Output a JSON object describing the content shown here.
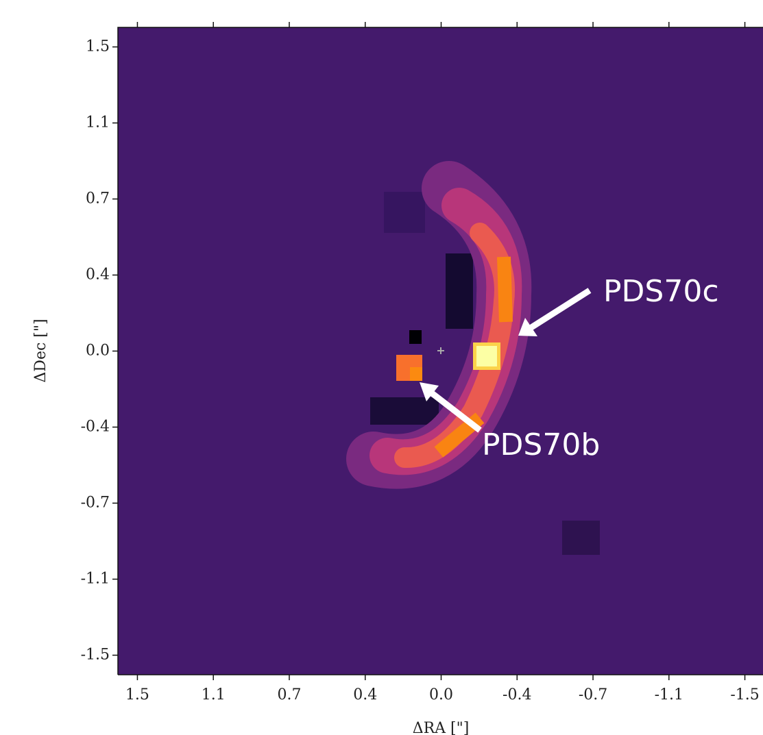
{
  "chart_data": {
    "type": "image",
    "x_label": "ΔRA [\"]",
    "y_label": "ΔDec [\"]",
    "xlim": [
      1.575,
      -1.575
    ],
    "ylim": [
      -1.575,
      1.575
    ],
    "xticks": [
      {
        "value": 1.48,
        "label": "1.5"
      },
      {
        "value": 1.11,
        "label": "1.1"
      },
      {
        "value": 0.74,
        "label": "0.7"
      },
      {
        "value": 0.37,
        "label": "0.4"
      },
      {
        "value": 0,
        "label": "0.0"
      },
      {
        "value": -0.37,
        "label": "-0.4"
      },
      {
        "value": -0.74,
        "label": "-0.7"
      },
      {
        "value": -1.11,
        "label": "-1.1"
      },
      {
        "value": -1.48,
        "label": "-1.5"
      }
    ],
    "yticks": [
      {
        "value": 1.48,
        "label": "1.5"
      },
      {
        "value": 1.11,
        "label": "1.1"
      },
      {
        "value": 0.74,
        "label": "0.7"
      },
      {
        "value": 0.37,
        "label": "0.4"
      },
      {
        "value": 0,
        "label": "0.0"
      },
      {
        "value": -0.37,
        "label": "-0.4"
      },
      {
        "value": -0.74,
        "label": "-0.7"
      },
      {
        "value": -1.11,
        "label": "-1.1"
      },
      {
        "value": -1.48,
        "label": "-1.5"
      }
    ],
    "annotations": [
      "PDS70c",
      "PDS70b"
    ]
  }
}
